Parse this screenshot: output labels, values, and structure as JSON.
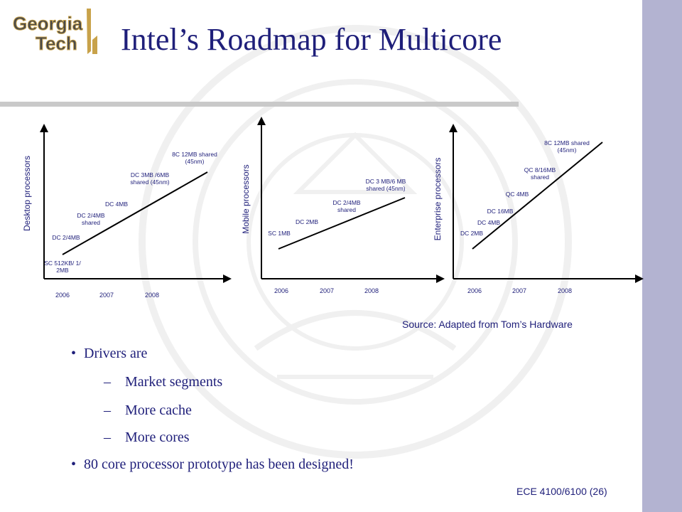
{
  "logo": {
    "line1": "Georgia",
    "line2": "Tech"
  },
  "title": "Intel’s Roadmap for Multicore",
  "source": "Source: Adapted from Tom’s Hardware",
  "footer": "ECE 4100/6100 (26)",
  "colors": {
    "title": "#1f1f7a",
    "sidebar": "#b3b3d1",
    "rule": "#c9c9c9"
  },
  "bullets": [
    {
      "level": 1,
      "text": "Drivers are"
    },
    {
      "level": 2,
      "text": "Market segments"
    },
    {
      "level": 2,
      "text": "More cache"
    },
    {
      "level": 2,
      "text": "More cores"
    },
    {
      "level": 1,
      "text": "80 core processor prototype has been designed!"
    }
  ],
  "chart_data": [
    {
      "type": "line",
      "ylabel": "Desktop processors",
      "x": [
        "2006",
        "2007",
        "2008"
      ],
      "annotations": [
        "SC 512KB/ 1/ 2MB",
        "DC 2/4MB",
        "DC 2/4MB shared",
        "DC 4MB",
        "DC 3MB /6MB shared (45nm)",
        "8C 12MB shared (45nm)"
      ]
    },
    {
      "type": "line",
      "ylabel": "Mobile  processors",
      "x": [
        "2006",
        "2007",
        "2008"
      ],
      "annotations": [
        "SC 1MB",
        "DC 2MB",
        "DC 2/4MB shared",
        "DC 3 MB/6 MB shared (45nm)"
      ]
    },
    {
      "type": "line",
      "ylabel": "Enterprise  processors",
      "x": [
        "2006",
        "2007",
        "2008"
      ],
      "annotations": [
        "DC 2MB",
        "DC 4MB",
        "DC 16MB",
        "QC 4MB",
        "QC 8/16MB shared",
        "8C 12MB shared (45nm)"
      ]
    }
  ]
}
